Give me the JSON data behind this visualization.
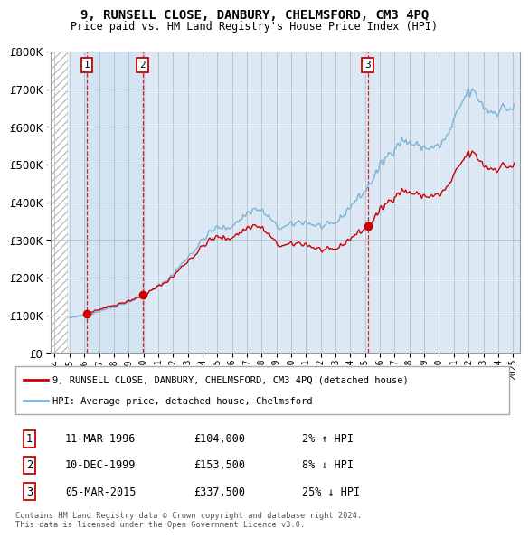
{
  "title1": "9, RUNSELL CLOSE, DANBURY, CHELMSFORD, CM3 4PQ",
  "title2": "Price paid vs. HM Land Registry's House Price Index (HPI)",
  "legend_label1": "9, RUNSELL CLOSE, DANBURY, CHELMSFORD, CM3 4PQ (detached house)",
  "legend_label2": "HPI: Average price, detached house, Chelmsford",
  "footer": "Contains HM Land Registry data © Crown copyright and database right 2024.\nThis data is licensed under the Open Government Licence v3.0.",
  "sale_years": [
    1996.19,
    1999.94,
    2015.17
  ],
  "sale_prices": [
    104000,
    153500,
    337500
  ],
  "sale_labels": [
    "1",
    "2",
    "3"
  ],
  "sale_info": [
    "11-MAR-1996",
    "10-DEC-1999",
    "05-MAR-2015"
  ],
  "sale_prices_str": [
    "£104,000",
    "£153,500",
    "£337,500"
  ],
  "sale_hpi_pct": [
    "2% ↑ HPI",
    "8% ↓ HPI",
    "25% ↓ HPI"
  ],
  "hpi_color": "#7ab3d4",
  "price_color": "#cc0000",
  "vline_color": "#cc0000",
  "ylim": [
    0,
    800000
  ],
  "yticks": [
    0,
    100000,
    200000,
    300000,
    400000,
    500000,
    600000,
    700000,
    800000
  ],
  "xlim_start": 1993.75,
  "xlim_end": 2025.5,
  "background_main": "#dce9f5",
  "grid_color": "#b0b8c8"
}
